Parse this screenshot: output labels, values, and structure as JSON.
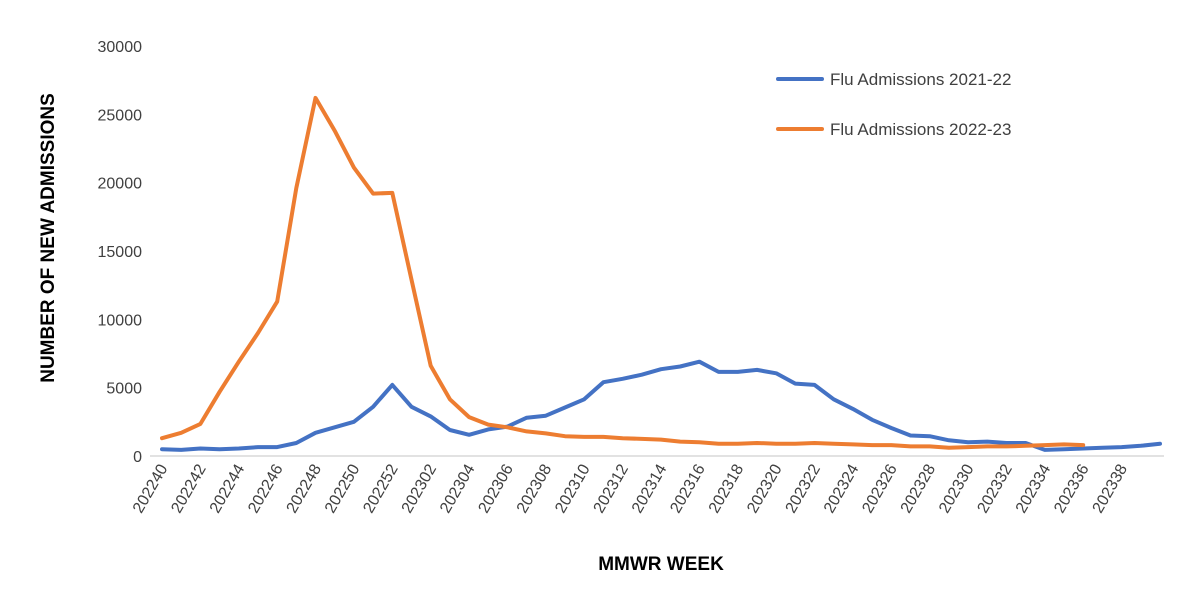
{
  "chart_data": {
    "type": "line",
    "title": "",
    "xlabel": "MMWR WEEK",
    "ylabel": "NUMBER OF NEW ADMISSIONS",
    "ylim": [
      0,
      30000
    ],
    "yticks": [
      0,
      5000,
      10000,
      15000,
      20000,
      25000,
      30000
    ],
    "grid": false,
    "legend_position": "top-right",
    "x_tick_labels": [
      "202240",
      "202242",
      "202244",
      "202246",
      "202248",
      "202250",
      "202252",
      "202302",
      "202304",
      "202306",
      "202308",
      "202310",
      "202312",
      "202314",
      "202316",
      "202318",
      "202320",
      "202322",
      "202324",
      "202326",
      "202328",
      "202330",
      "202332",
      "202334",
      "202336",
      "202338"
    ],
    "series": [
      {
        "name": "Flu Admissions 2021-22",
        "color": "#4472c4",
        "values": [
          500,
          450,
          550,
          500,
          550,
          650,
          650,
          950,
          1700,
          2100,
          2500,
          3600,
          5200,
          3600,
          2900,
          1900,
          1550,
          1950,
          2150,
          2800,
          2950,
          3550,
          4150,
          5400,
          5650,
          5950,
          6350,
          6550,
          6900,
          6150,
          6150,
          6300,
          6050,
          5300,
          5200,
          4150,
          3450,
          2650,
          2050,
          1500,
          1450,
          1150,
          1000,
          1050,
          950,
          950,
          450,
          500,
          550,
          600,
          650,
          750,
          900
        ]
      },
      {
        "name": "Flu Admissions 2022-23",
        "color": "#ed7d31",
        "values": [
          1300,
          1700,
          2350,
          4700,
          6900,
          9000,
          11300,
          19600,
          26200,
          23800,
          21100,
          19200,
          19250,
          12900,
          6600,
          4150,
          2850,
          2300,
          2100,
          1800,
          1650,
          1450,
          1400,
          1400,
          1300,
          1250,
          1200,
          1050,
          1000,
          900,
          900,
          950,
          900,
          900,
          950,
          900,
          850,
          800,
          800,
          700,
          700,
          600,
          650,
          700,
          700,
          750,
          800,
          850,
          800
        ]
      }
    ]
  }
}
